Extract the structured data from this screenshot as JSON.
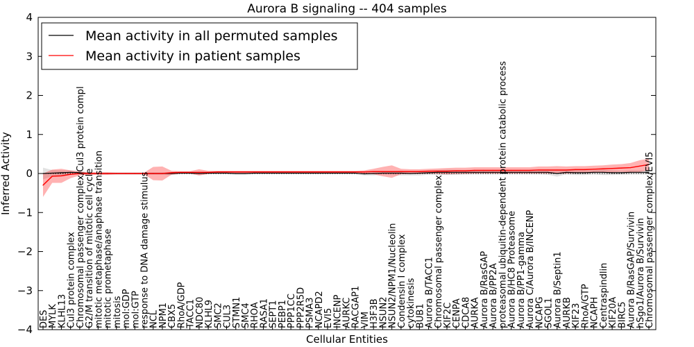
{
  "chart_data": {
    "type": "line",
    "title": "Aurora B signaling -- 404 samples",
    "xlabel": "Cellular Entities",
    "ylabel": "Inferred Activity",
    "ylim": [
      -4,
      4
    ],
    "yticks": [
      -4,
      -3,
      -2,
      -1,
      0,
      1,
      2,
      3,
      4
    ],
    "grid": false,
    "legend_position": "top-left",
    "categories": [
      "DES",
      "MYLK",
      "KLHL13",
      "Cul3 protein complex",
      "Chromosomal passenger complex/Cul3 protein compl",
      "G2/M transition of mitotic cell cycle",
      "mitotic metaphase/anaphase transition",
      "mitotic prometaphase",
      "mitosis",
      "mol:GDP",
      "mol:GTP",
      "response to DNA damage stimulus",
      "NCL",
      "NPM1",
      "CBX5",
      "RhoA/GDP",
      "TACC1",
      "NDC80",
      "KLHL9",
      "SMC2",
      "CUL3",
      "STMN1",
      "SMC4",
      "RHOA",
      "RASA1",
      "SEPT1",
      "PEBP1",
      "PPP1CC",
      "PPP2R5D",
      "PSMA3",
      "NCAPD2",
      "EVI5",
      "INCENP",
      "AURKC",
      "RACGAP1",
      "VIM",
      "H3F3B",
      "NSUN2",
      "NSUN2/NPM1/Nucleolin",
      "Condensin I complex",
      "cytokinesis",
      "BUB1",
      "Aurora B/TACC1",
      "Chromosomal passenger complex",
      "KIF2C",
      "CENPA",
      "CDCA8",
      "AURKA",
      "Aurora B/RasGAP",
      "Aurora B/PP2A",
      "proteasomal ubiquitin-dependent protein catabolic process",
      "Aurora B/HC8 Proteasome",
      "Aurora B/PP1-gamma",
      "Aurora C/Aurora B/INCENP",
      "NCAPG",
      "SGOL1",
      "Aurora B/Septin1",
      "AURKB",
      "KIF23",
      "RhoA/GTP",
      "NCAPH",
      "Centraspindlin",
      "KIF20A",
      "BIRC5",
      "Aurora B/RasGAP/Survivin",
      "hSgo1/Aurora B/Survivin",
      "Chromosomal passenger complex/EVI5"
    ],
    "series": [
      {
        "name": "Mean activity in all permuted samples",
        "color": "#000000",
        "values": [
          0,
          0.01,
          0.02,
          0.03,
          0.02,
          0,
          0,
          0,
          0,
          0,
          0,
          0,
          0,
          0,
          0,
          0.01,
          0.01,
          0,
          0.01,
          0.01,
          0.01,
          0,
          0,
          0.01,
          0.01,
          0.01,
          0.01,
          0.01,
          0.01,
          0.01,
          0.01,
          0.01,
          0.01,
          0.01,
          0.01,
          -0.01,
          0,
          0.01,
          0.01,
          0.01,
          0,
          0.01,
          0.02,
          0.03,
          0.03,
          0.03,
          0.03,
          0.03,
          0.03,
          0.03,
          0.03,
          0.03,
          0.03,
          0.03,
          0.03,
          0.03,
          0,
          0.03,
          0.02,
          0.02,
          0.03,
          0.03,
          0.02,
          0.02,
          0.03,
          0.03,
          0.03
        ],
        "band": [
          0.15,
          0.08,
          0.06,
          0.05,
          0.04,
          0.03,
          0.03,
          0.03,
          0.03,
          0.03,
          0.03,
          0.03,
          0.03,
          0.03,
          0.04,
          0.03,
          0.03,
          0.03,
          0.03,
          0.03,
          0.03,
          0.03,
          0.03,
          0.03,
          0.03,
          0.03,
          0.03,
          0.03,
          0.03,
          0.03,
          0.03,
          0.03,
          0.03,
          0.03,
          0.03,
          0.04,
          0.05,
          0.04,
          0.05,
          0.06,
          0.05,
          0.06,
          0.05,
          0.06,
          0.07,
          0.06,
          0.05,
          0.05,
          0.05,
          0.05,
          0.05,
          0.05,
          0.05,
          0.05,
          0.05,
          0.06,
          0.08,
          0.05,
          0.06,
          0.06,
          0.05,
          0.07,
          0.06,
          0.05,
          0.05,
          0.05,
          0.05
        ]
      },
      {
        "name": "Mean activity in patient samples",
        "color": "#ff0000",
        "values": [
          -0.3,
          -0.07,
          -0.06,
          -0.02,
          0,
          0,
          0,
          0,
          0,
          0,
          0,
          0,
          0,
          0,
          0.02,
          0.03,
          0.03,
          0.03,
          0.03,
          0.04,
          0.04,
          0.04,
          0.04,
          0.04,
          0.04,
          0.04,
          0.04,
          0.04,
          0.04,
          0.04,
          0.04,
          0.04,
          0.04,
          0.04,
          0.04,
          0.04,
          0.05,
          0.05,
          0.05,
          0.05,
          0.05,
          0.05,
          0.06,
          0.06,
          0.06,
          0.07,
          0.07,
          0.08,
          0.08,
          0.08,
          0.08,
          0.08,
          0.08,
          0.08,
          0.09,
          0.09,
          0.09,
          0.09,
          0.1,
          0.1,
          0.11,
          0.12,
          0.13,
          0.14,
          0.15,
          0.19,
          0.23
        ],
        "band": [
          0.3,
          0.17,
          0.18,
          0.1,
          0.05,
          0.03,
          0.03,
          0.03,
          0.02,
          0.02,
          0.02,
          0.02,
          0.17,
          0.18,
          0.05,
          0.03,
          0.03,
          0.08,
          0.04,
          0.03,
          0.03,
          0.03,
          0.03,
          0.03,
          0.03,
          0.03,
          0.03,
          0.03,
          0.03,
          0.03,
          0.03,
          0.03,
          0.03,
          0.03,
          0.03,
          0.04,
          0.07,
          0.12,
          0.16,
          0.07,
          0.06,
          0.06,
          0.06,
          0.07,
          0.08,
          0.08,
          0.08,
          0.08,
          0.08,
          0.08,
          0.08,
          0.08,
          0.08,
          0.08,
          0.09,
          0.09,
          0.1,
          0.09,
          0.09,
          0.09,
          0.09,
          0.09,
          0.1,
          0.1,
          0.12,
          0.15,
          0.15
        ]
      }
    ]
  }
}
